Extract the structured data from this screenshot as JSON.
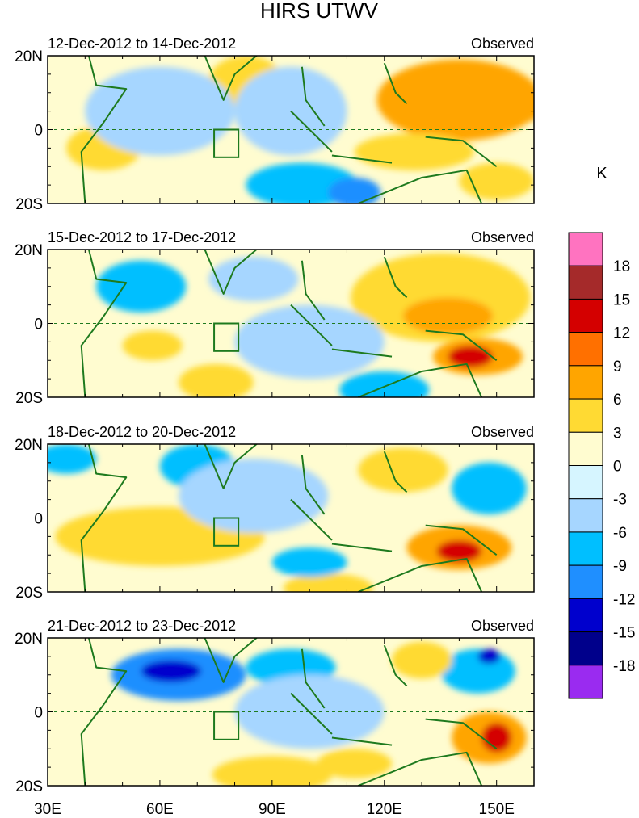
{
  "chart_data": {
    "type": "heatmap",
    "title": "HIRS UTWV",
    "units": "K",
    "x_ticks": [
      "30E",
      "60E",
      "90E",
      "120E",
      "150E"
    ],
    "x_tick_values": [
      30,
      60,
      90,
      120,
      150
    ],
    "xlim": [
      30,
      160
    ],
    "ylim": [
      -20,
      20
    ],
    "y_ticks": [
      "20N",
      "0",
      "20S"
    ],
    "y_tick_values": [
      20,
      0,
      -20
    ],
    "colorbar": {
      "levels": [
        "18",
        "15",
        "12",
        "9",
        "6",
        "3",
        "0",
        "-3",
        "-6",
        "-9",
        "-12",
        "-15",
        "-18"
      ],
      "colors": [
        "#ff73c0",
        "#a52a2a",
        "#d40000",
        "#ff7000",
        "#ffa500",
        "#ffda33",
        "#fffcd0",
        "#d6f5ff",
        "#a6d6ff",
        "#00bfff",
        "#1f8fff",
        "#0000cd",
        "#00008b",
        "#9a2bf0"
      ]
    },
    "panels": [
      {
        "period": "12-Dec-2012 to 14-Dec-2012",
        "label": "Observed",
        "blobs": [
          {
            "lon": 140,
            "lat": 8,
            "rx": 22,
            "ry": 11,
            "v": 8
          },
          {
            "lon": 153,
            "lat": 7,
            "rx": 10,
            "ry": 6,
            "v": 9
          },
          {
            "lon": 155,
            "lat": 7,
            "rx": 5,
            "ry": 3,
            "v": 7
          },
          {
            "lon": 83,
            "lat": 13,
            "rx": 10,
            "ry": 7,
            "v": 6
          },
          {
            "lon": 128,
            "lat": -6,
            "rx": 16,
            "ry": 5,
            "v": 4
          },
          {
            "lon": 45,
            "lat": -5,
            "rx": 10,
            "ry": 6,
            "v": 4
          },
          {
            "lon": 150,
            "lat": -14,
            "rx": 10,
            "ry": 5,
            "v": 5
          },
          {
            "lon": 98,
            "lat": -15,
            "rx": 15,
            "ry": 6,
            "v": -7
          },
          {
            "lon": 112,
            "lat": -17,
            "rx": 7,
            "ry": 4,
            "v": -9
          },
          {
            "lon": 60,
            "lat": 5,
            "rx": 20,
            "ry": 12,
            "v": -4
          },
          {
            "lon": 95,
            "lat": 5,
            "rx": 15,
            "ry": 12,
            "v": -3
          }
        ]
      },
      {
        "period": "15-Dec-2012 to 17-Dec-2012",
        "label": "Observed",
        "blobs": [
          {
            "lon": 135,
            "lat": 7,
            "rx": 24,
            "ry": 12,
            "v": 5
          },
          {
            "lon": 137,
            "lat": 2,
            "rx": 12,
            "ry": 5,
            "v": 7
          },
          {
            "lon": 145,
            "lat": -9,
            "rx": 12,
            "ry": 5,
            "v": 9
          },
          {
            "lon": 143,
            "lat": -9,
            "rx": 6,
            "ry": 3,
            "v": 13
          },
          {
            "lon": 58,
            "lat": -6,
            "rx": 8,
            "ry": 4,
            "v": 5
          },
          {
            "lon": 75,
            "lat": -16,
            "rx": 10,
            "ry": 5,
            "v": 4
          },
          {
            "lon": 55,
            "lat": 10,
            "rx": 12,
            "ry": 7,
            "v": -7
          },
          {
            "lon": 120,
            "lat": -18,
            "rx": 12,
            "ry": 5,
            "v": -7
          },
          {
            "lon": 100,
            "lat": -5,
            "rx": 20,
            "ry": 10,
            "v": -4
          },
          {
            "lon": 85,
            "lat": 12,
            "rx": 12,
            "ry": 6,
            "v": -4
          }
        ]
      },
      {
        "period": "18-Dec-2012 to 20-Dec-2012",
        "label": "Observed",
        "blobs": [
          {
            "lon": 60,
            "lat": -5,
            "rx": 28,
            "ry": 8,
            "v": 4
          },
          {
            "lon": 140,
            "lat": -8,
            "rx": 14,
            "ry": 6,
            "v": 8
          },
          {
            "lon": 140,
            "lat": -9,
            "rx": 6,
            "ry": 3,
            "v": 14
          },
          {
            "lon": 125,
            "lat": 13,
            "rx": 12,
            "ry": 6,
            "v": 4
          },
          {
            "lon": 105,
            "lat": -19,
            "rx": 12,
            "ry": 4,
            "v": 6
          },
          {
            "lon": 70,
            "lat": 14,
            "rx": 10,
            "ry": 6,
            "v": -8
          },
          {
            "lon": 35,
            "lat": 16,
            "rx": 8,
            "ry": 4,
            "v": -7
          },
          {
            "lon": 100,
            "lat": -12,
            "rx": 10,
            "ry": 4,
            "v": -8
          },
          {
            "lon": 148,
            "lat": 8,
            "rx": 10,
            "ry": 7,
            "v": -6
          },
          {
            "lon": 85,
            "lat": 6,
            "rx": 20,
            "ry": 10,
            "v": -3
          }
        ]
      },
      {
        "period": "21-Dec-2012 to 23-Dec-2012",
        "label": "Observed",
        "blobs": [
          {
            "lon": 65,
            "lat": 10,
            "rx": 18,
            "ry": 7,
            "v": -9
          },
          {
            "lon": 63,
            "lat": 11,
            "rx": 8,
            "ry": 3,
            "v": -13
          },
          {
            "lon": 95,
            "lat": 12,
            "rx": 12,
            "ry": 5,
            "v": -8
          },
          {
            "lon": 145,
            "lat": 11,
            "rx": 10,
            "ry": 6,
            "v": -6
          },
          {
            "lon": 148,
            "lat": 15,
            "rx": 3,
            "ry": 2,
            "v": -12
          },
          {
            "lon": 100,
            "lat": 0,
            "rx": 20,
            "ry": 10,
            "v": -4
          },
          {
            "lon": 148,
            "lat": -7,
            "rx": 10,
            "ry": 7,
            "v": 9
          },
          {
            "lon": 150,
            "lat": -7,
            "rx": 4,
            "ry": 4,
            "v": 14
          },
          {
            "lon": 90,
            "lat": -17,
            "rx": 16,
            "ry": 5,
            "v": 6
          },
          {
            "lon": 112,
            "lat": -14,
            "rx": 10,
            "ry": 4,
            "v": 4
          },
          {
            "lon": 65,
            "lat": -10,
            "rx": 10,
            "ry": 5,
            "v": 3
          },
          {
            "lon": 130,
            "lat": 14,
            "rx": 8,
            "ry": 5,
            "v": 4
          }
        ]
      }
    ]
  }
}
